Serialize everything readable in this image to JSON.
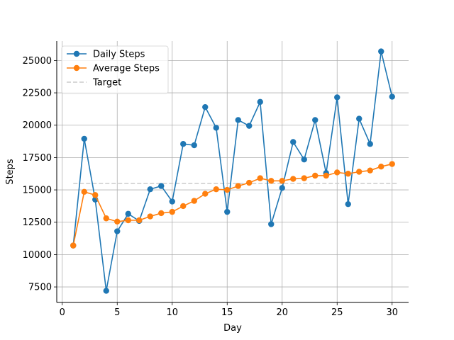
{
  "chart_data": {
    "type": "line",
    "xlabel": "Day",
    "ylabel": "Steps",
    "xlim": [
      -0.5,
      31.5
    ],
    "ylim": [
      6300,
      26500
    ],
    "xticks": [
      0,
      5,
      10,
      15,
      20,
      25,
      30
    ],
    "yticks": [
      7500,
      10000,
      12500,
      15000,
      17500,
      20000,
      22500,
      25000
    ],
    "grid": true,
    "legend_position": "top-left",
    "x": [
      1,
      2,
      3,
      4,
      5,
      6,
      7,
      8,
      9,
      10,
      11,
      12,
      13,
      14,
      15,
      16,
      17,
      18,
      19,
      20,
      21,
      22,
      23,
      24,
      25,
      26,
      27,
      28,
      29,
      30
    ],
    "series": [
      {
        "name": "Daily Steps",
        "color": "#1f77b4",
        "marker": "circle",
        "values": [
          10700,
          18950,
          14250,
          7200,
          11800,
          13150,
          12600,
          15050,
          15300,
          14100,
          18550,
          18450,
          21400,
          19800,
          13300,
          20400,
          19950,
          21800,
          12350,
          15150,
          18700,
          17350,
          20400,
          16300,
          22150,
          13900,
          20500,
          18550,
          25700,
          22200
        ]
      },
      {
        "name": "Average Steps",
        "color": "#ff7f0e",
        "marker": "circle",
        "values": [
          10700,
          14850,
          14600,
          12800,
          12550,
          12650,
          12650,
          12950,
          13200,
          13300,
          13750,
          14150,
          14700,
          15050,
          15000,
          15300,
          15550,
          15900,
          15700,
          15700,
          15850,
          15900,
          16100,
          16100,
          16350,
          16250,
          16400,
          16500,
          16800,
          17000
        ]
      },
      {
        "name": "Target",
        "color": "#cccccc",
        "style": "dashed",
        "x": [
          1,
          30.5
        ],
        "values": [
          15500,
          15500
        ]
      }
    ]
  }
}
